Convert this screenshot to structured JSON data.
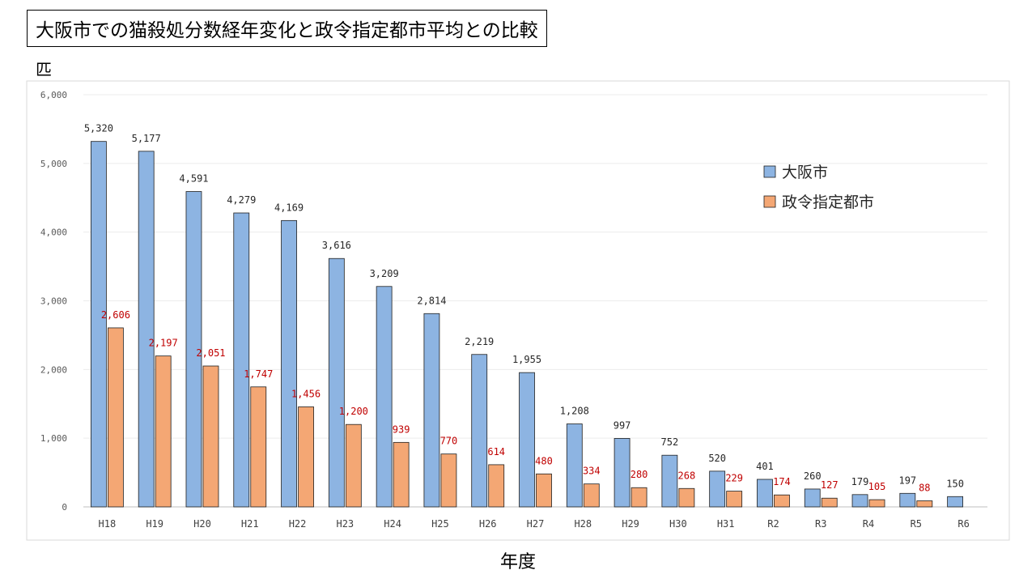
{
  "chart_data": {
    "type": "bar",
    "title": "大阪市での猫殺処分数経年変化と政令指定都市平均との比較",
    "ylabel": "匹",
    "xlabel": "年度",
    "ylim": [
      0,
      6000
    ],
    "yticks": [
      0,
      1000,
      2000,
      3000,
      4000,
      5000,
      6000
    ],
    "ytick_labels": [
      "0",
      "1,000",
      "2,000",
      "3,000",
      "4,000",
      "5,000",
      "6,000"
    ],
    "grid": true,
    "legend_position": "right",
    "categories": [
      "H18",
      "H19",
      "H20",
      "H21",
      "H22",
      "H23",
      "H24",
      "H25",
      "H26",
      "H27",
      "H28",
      "H29",
      "H30",
      "H31",
      "R2",
      "R3",
      "R4",
      "R5",
      "R6"
    ],
    "series": [
      {
        "name": "大阪市",
        "color": "#8db4e2",
        "label_color": "#262626",
        "values": [
          5320,
          5177,
          4591,
          4279,
          4169,
          3616,
          3209,
          2814,
          2219,
          1955,
          1208,
          997,
          752,
          520,
          401,
          260,
          179,
          197,
          150
        ],
        "labels": [
          "5,320",
          "5,177",
          "4,591",
          "4,279",
          "4,169",
          "3,616",
          "3,209",
          "2,814",
          "2,219",
          "1,955",
          "1,208",
          "997",
          "752",
          "520",
          "401",
          "260",
          "179",
          "197",
          "150"
        ]
      },
      {
        "name": "政令指定都市",
        "color": "#f4a774",
        "label_color": "#c00000",
        "values": [
          2606,
          2197,
          2051,
          1747,
          1456,
          1200,
          939,
          770,
          614,
          480,
          334,
          280,
          268,
          229,
          174,
          127,
          105,
          88,
          null
        ],
        "labels": [
          "2,606",
          "2,197",
          "2,051",
          "1,747",
          "1,456",
          "1,200",
          "939",
          "770",
          "614",
          "480",
          "334",
          "280",
          "268",
          "229",
          "174",
          "127",
          "105",
          "88",
          ""
        ]
      }
    ]
  }
}
